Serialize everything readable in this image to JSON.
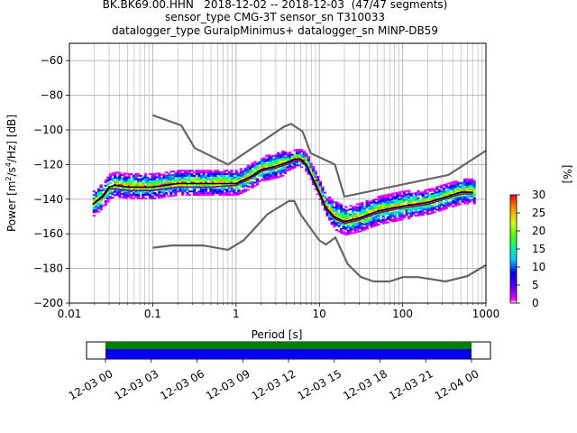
{
  "header": {
    "line1": "BK.BK69.00.HHN   2018-12-02 -- 2018-12-03  (47/47 segments)",
    "line2": "sensor_type CMG-3T sensor_sn T310033",
    "line3": "datalogger_type GuralpMinimus+ datalogger_sn MINP-DB59"
  },
  "chart_data": {
    "type": "heatmap",
    "title": "BK.BK69.00.HHN   2018-12-02 -- 2018-12-03  (47/47 segments)",
    "xlabel": "Period [s]",
    "ylabel": "Power [m²/s⁴/Hz] [dB]",
    "x_scale": "log",
    "xlim": [
      0.01,
      1000
    ],
    "ylim": [
      -200,
      -50
    ],
    "x_ticks": [
      "0.01",
      "0.1",
      "1",
      "10",
      "100",
      "1000"
    ],
    "y_ticks": [
      "−200",
      "−180",
      "−160",
      "−140",
      "−120",
      "−100",
      "−80",
      "−60"
    ],
    "grid": true,
    "colorbar": {
      "label": "[%]",
      "range": [
        0,
        30
      ],
      "ticks": [
        "0",
        "5",
        "10",
        "15",
        "20",
        "25",
        "30"
      ]
    },
    "series": [
      {
        "name": "NHNM",
        "x": [
          0.1,
          0.22,
          0.32,
          0.8,
          3.8,
          4.6,
          6.3,
          7.9,
          15.4,
          20,
          354.8,
          1000
        ],
        "y": [
          -91.5,
          -97.4,
          -110.5,
          -120,
          -98,
          -96.5,
          -101,
          -113.5,
          -120,
          -138.5,
          -126,
          -112
        ]
      },
      {
        "name": "NLNM",
        "x": [
          0.1,
          0.17,
          0.4,
          0.8,
          1.24,
          2.4,
          4.3,
          5.0,
          6.0,
          10,
          12,
          15.6,
          21.9,
          31.6,
          45,
          70,
          101,
          154,
          328,
          600,
          1000
        ],
        "y": [
          -168,
          -166.7,
          -166.7,
          -169.2,
          -163.7,
          -148.6,
          -141.1,
          -141.1,
          -149,
          -163.8,
          -166.2,
          -162.1,
          -177.5,
          -185,
          -187.5,
          -187.5,
          -185,
          -185,
          -187.5,
          -184.4,
          -178
        ]
      },
      {
        "name": "median",
        "x": [
          0.019,
          0.025,
          0.03,
          0.035,
          0.05,
          0.1,
          0.2,
          0.5,
          1.0,
          1.5,
          2.0,
          3.0,
          4.0,
          5.0,
          6.0,
          7.0,
          8.0,
          10,
          12,
          15,
          20,
          30,
          50,
          100,
          200,
          500,
          700
        ],
        "y": [
          -143,
          -138,
          -133,
          -132,
          -133,
          -133,
          -131,
          -131,
          -131,
          -127,
          -123,
          -121,
          -119,
          -117,
          -117,
          -120,
          -126,
          -136,
          -145,
          -150,
          -153,
          -151,
          -147,
          -144,
          -142,
          -136,
          -136
        ]
      },
      {
        "name": "mean",
        "x": [
          0.019,
          0.025,
          0.03,
          0.035,
          0.05,
          0.1,
          0.2,
          0.5,
          1.0,
          1.5,
          2.0,
          3.0,
          4.0,
          5.0,
          6.0,
          7.0,
          8.0,
          10,
          12,
          15,
          20,
          30,
          50,
          100,
          200,
          500,
          700
        ],
        "y": [
          -143,
          -139,
          -134,
          -134,
          -135,
          -135,
          -133,
          -133,
          -132,
          -128,
          -124,
          -122,
          -120,
          -118,
          -118,
          -121,
          -127,
          -137,
          -146,
          -151,
          -154,
          -152,
          -148,
          -145,
          -143,
          -137,
          -137
        ]
      }
    ],
    "time_axis": {
      "ticks": [
        "12-03 00",
        "12-03 03",
        "12-03 06",
        "12-03 09",
        "12-03 12",
        "12-03 15",
        "12-03 18",
        "12-03 21",
        "12-04 00"
      ],
      "coverage": "full"
    },
    "colors": {
      "model_lines": "#666666",
      "median": "#000000",
      "mean": "#7a00aa",
      "data_coverage": "#008000",
      "gap_bar": "#0000ee"
    }
  }
}
